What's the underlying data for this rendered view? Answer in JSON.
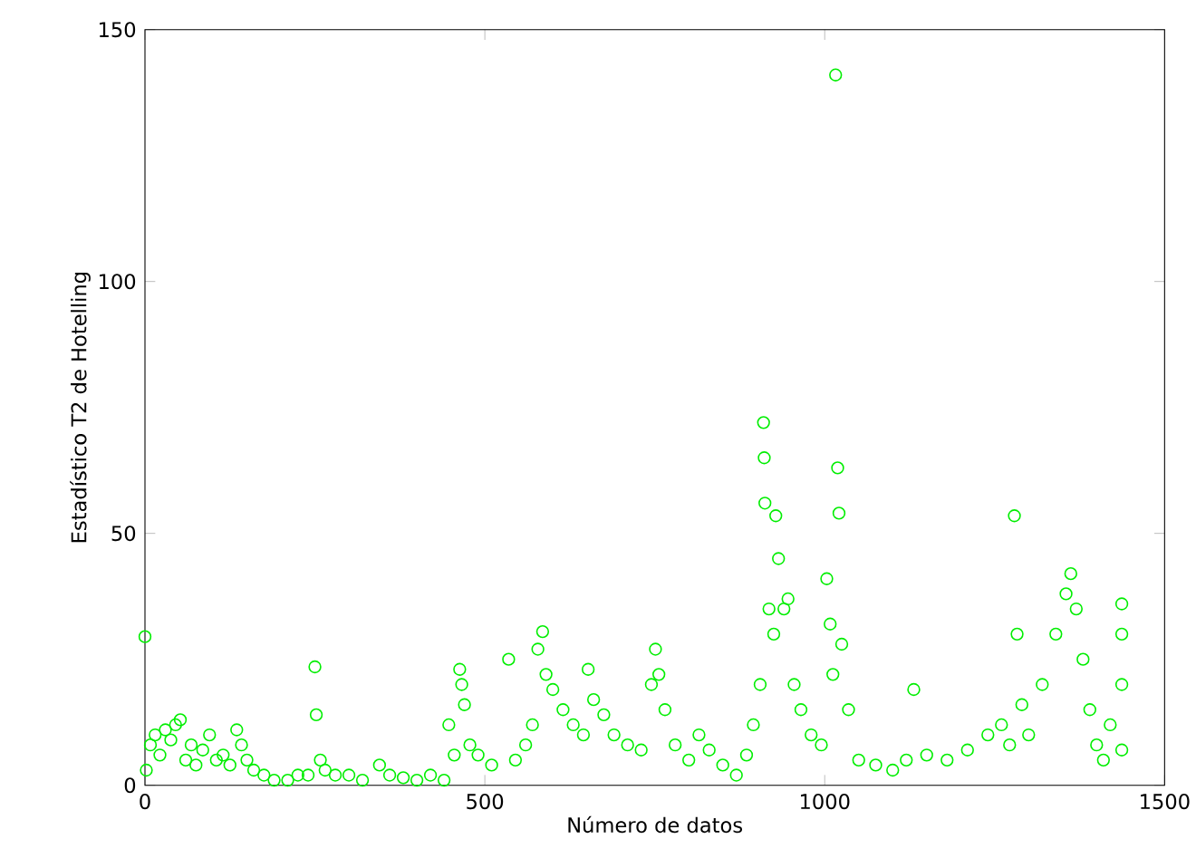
{
  "chart_data": {
    "type": "scatter",
    "xlabel": "Número de datos",
    "ylabel": "Estadístico T2 de Hotelling",
    "x": [
      0,
      2,
      8,
      15,
      22,
      30,
      38,
      45,
      52,
      60,
      68,
      75,
      85,
      95,
      105,
      115,
      125,
      135,
      142,
      150,
      160,
      175,
      190,
      210,
      225,
      240,
      250,
      252,
      258,
      265,
      280,
      300,
      320,
      345,
      360,
      380,
      400,
      420,
      440,
      447,
      455,
      463,
      466,
      470,
      478,
      490,
      510,
      535,
      545,
      560,
      570,
      578,
      585,
      590,
      600,
      615,
      630,
      645,
      652,
      660,
      675,
      690,
      710,
      730,
      745,
      751,
      756,
      765,
      780,
      800,
      815,
      830,
      850,
      870,
      885,
      895,
      905,
      910,
      911,
      912,
      918,
      925,
      928,
      932,
      940,
      946,
      955,
      965,
      980,
      995,
      1003,
      1008,
      1012,
      1016,
      1019,
      1021,
      1025,
      1035,
      1050,
      1075,
      1100,
      1120,
      1131,
      1150,
      1180,
      1210,
      1240,
      1260,
      1272,
      1279,
      1283,
      1290,
      1300,
      1320,
      1340,
      1355,
      1362,
      1370,
      1380,
      1390,
      1400,
      1410,
      1420,
      1437,
      1437,
      1437,
      1437
    ],
    "values": [
      29.5,
      3,
      8,
      10,
      6,
      11,
      9,
      12,
      13,
      5,
      8,
      4,
      7,
      10,
      5,
      6,
      4,
      11,
      8,
      5,
      3,
      2,
      1,
      1,
      2,
      2,
      23.5,
      14,
      5,
      3,
      2,
      2,
      1,
      4,
      2,
      1.5,
      1,
      2,
      1,
      12,
      6,
      23,
      20,
      16,
      8,
      6,
      4,
      25,
      5,
      8,
      12,
      27,
      30.5,
      22,
      19,
      15,
      12,
      10,
      23,
      17,
      14,
      10,
      8,
      7,
      20,
      27,
      22,
      15,
      8,
      5,
      10,
      7,
      4,
      2,
      6,
      12,
      20,
      72,
      65,
      56,
      35,
      30,
      53.5,
      45,
      35,
      37,
      20,
      15,
      10,
      8,
      41,
      32,
      22,
      141,
      63,
      54,
      28,
      15,
      5,
      4,
      3,
      5,
      19,
      6,
      5,
      7,
      10,
      12,
      8,
      53.5,
      30,
      16,
      10,
      20,
      30,
      38,
      42,
      35,
      25,
      15,
      8,
      5,
      12,
      36,
      30,
      20,
      7
    ],
    "color": "#00ee00",
    "marker": "circle",
    "xlim": [
      0,
      1500
    ],
    "ylim": [
      0,
      150
    ],
    "xticks": [
      0,
      500,
      1000,
      1500
    ],
    "yticks": [
      0,
      50,
      100,
      150
    ],
    "grid": false
  }
}
